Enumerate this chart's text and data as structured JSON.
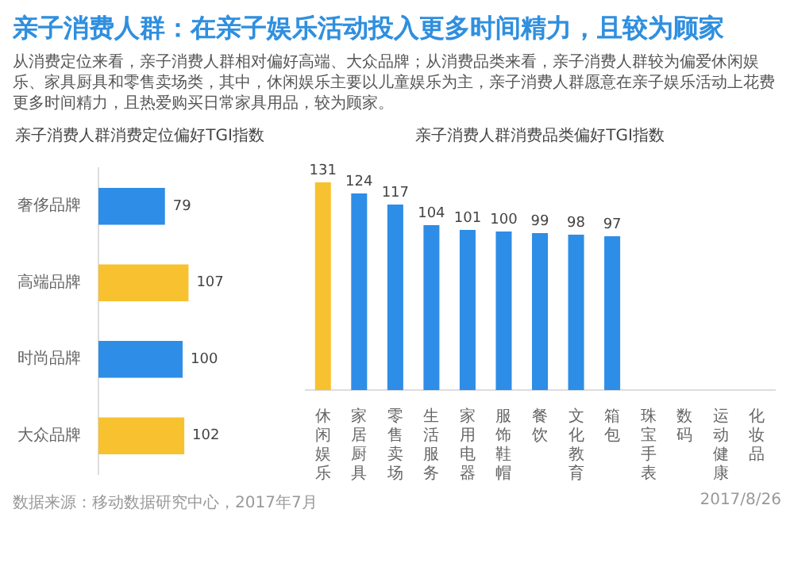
{
  "chart_data": [
    {
      "type": "other",
      "title": "亲子消费人群：在亲子娱乐活动投入更多时间精力，且较为顾家",
      "subtitle": "从消费定位来看，亲子消费人群相对偏好高端、大众品牌；从消费品类来看，亲子消费人群较为偏爱休闲娱乐、家具厨具和零售卖场类，其中，休闲娱乐主要以儿童娱乐为主，亲子消费人群愿意在亲子娱乐活动上花费更多时间精力，且热爱购买日常家具用品，较为顾家。",
      "annotations": [
        "数据来源：移动数据研究中心，2017年7月",
        "2017/8/26"
      ]
    },
    {
      "type": "bar",
      "orientation": "horizontal",
      "title": "亲子消费人群消费定位偏好TGI指数",
      "categories": [
        "奢侈品牌",
        "高端品牌",
        "时尚品牌",
        "大众品牌"
      ],
      "values": [
        79,
        107,
        100,
        102
      ],
      "colors": [
        "#2e8de6",
        "#f8c12f",
        "#2e8de6",
        "#f8c12f"
      ],
      "data_labels": true,
      "tick_labels": "y"
    },
    {
      "type": "bar",
      "title": "亲子消费人群消费品类偏好TGI指数",
      "categories": [
        "休闲娱乐",
        "家居厨具",
        "零售卖场",
        "生活服务",
        "家用电器",
        "服饰鞋帽",
        "餐饮",
        "文化教育",
        "箱包",
        "珠宝手表",
        "数码",
        "运动健康",
        "化妆品"
      ],
      "values": [
        131,
        124,
        117,
        104,
        101,
        100,
        99,
        98,
        97,
        null,
        null,
        null,
        null
      ],
      "colors": [
        "#f8c12f",
        "#2e8de6",
        "#2e8de6",
        "#2e8de6",
        "#2e8de6",
        "#2e8de6",
        "#2e8de6",
        "#2e8de6",
        "#2e8de6",
        "#2e8de6",
        "#2e8de6",
        "#2e8de6",
        "#2e8de6"
      ],
      "data_labels": true,
      "tick_labels": "x"
    }
  ]
}
